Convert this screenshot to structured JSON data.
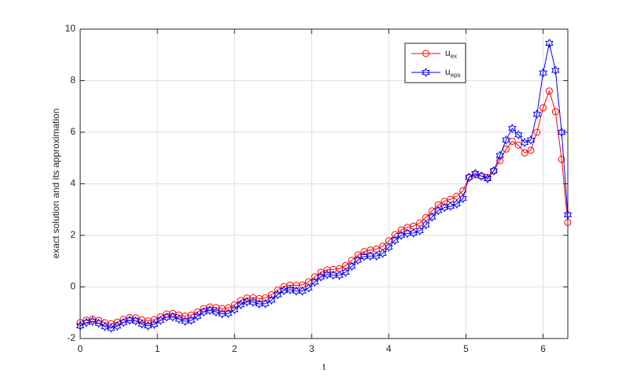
{
  "chart_data": {
    "type": "line",
    "xlabel": "t",
    "ylabel": "exact solution and its approximation",
    "x": [
      0,
      0.08,
      0.16,
      0.24,
      0.32,
      0.4,
      0.48,
      0.56,
      0.64,
      0.72,
      0.8,
      0.88,
      0.96,
      1.04,
      1.12,
      1.2,
      1.28,
      1.36,
      1.44,
      1.52,
      1.6,
      1.68,
      1.76,
      1.84,
      1.92,
      2,
      2.08,
      2.16,
      2.24,
      2.32,
      2.4,
      2.48,
      2.56,
      2.64,
      2.72,
      2.8,
      2.88,
      2.96,
      3.04,
      3.12,
      3.2,
      3.28,
      3.36,
      3.44,
      3.52,
      3.6,
      3.68,
      3.76,
      3.84,
      3.92,
      4,
      4.08,
      4.16,
      4.24,
      4.32,
      4.4,
      4.48,
      4.56,
      4.64,
      4.72,
      4.8,
      4.88,
      4.96,
      5.04,
      5.12,
      5.2,
      5.28,
      5.36,
      5.44,
      5.52,
      5.6,
      5.68,
      5.76,
      5.84,
      5.92,
      6,
      6.08,
      6.16,
      6.24,
      6.32
    ],
    "series": [
      {
        "name": "u_ex",
        "color": "#ff0000",
        "marker": "circle",
        "values": [
          -1.38,
          -1.29,
          -1.25,
          -1.3,
          -1.39,
          -1.43,
          -1.37,
          -1.26,
          -1.19,
          -1.2,
          -1.28,
          -1.32,
          -1.27,
          -1.16,
          -1.05,
          -1.03,
          -1.09,
          -1.13,
          -1.09,
          -0.97,
          -0.84,
          -0.78,
          -0.8,
          -0.84,
          -0.81,
          -0.69,
          -0.53,
          -0.43,
          -0.42,
          -0.45,
          -0.42,
          -0.3,
          -0.12,
          0.02,
          0.07,
          0.06,
          0.08,
          0.2,
          0.39,
          0.57,
          0.66,
          0.68,
          0.71,
          0.83,
          1.03,
          1.24,
          1.37,
          1.43,
          1.47,
          1.58,
          1.79,
          2.03,
          2.21,
          2.31,
          2.36,
          2.48,
          2.69,
          2.95,
          3.18,
          3.32,
          3.4,
          3.52,
          3.73,
          4.25,
          4.35,
          4.3,
          4.25,
          4.5,
          4.9,
          5.35,
          5.65,
          5.5,
          5.2,
          5.3,
          6.0,
          6.95,
          7.6,
          6.8,
          4.95,
          2.5
        ]
      },
      {
        "name": "u_eps",
        "color": "#0000ff",
        "marker": "hexagram",
        "values": [
          -1.51,
          -1.38,
          -1.33,
          -1.41,
          -1.54,
          -1.6,
          -1.52,
          -1.38,
          -1.29,
          -1.32,
          -1.44,
          -1.51,
          -1.45,
          -1.3,
          -1.17,
          -1.16,
          -1.25,
          -1.33,
          -1.29,
          -1.14,
          -0.97,
          -0.91,
          -0.97,
          -1.04,
          -1.03,
          -0.88,
          -0.69,
          -0.58,
          -0.59,
          -0.66,
          -0.65,
          -0.51,
          -0.3,
          -0.14,
          -0.11,
          -0.16,
          -0.16,
          -0.04,
          0.19,
          0.39,
          0.48,
          0.46,
          0.45,
          0.57,
          0.8,
          1.04,
          1.18,
          1.2,
          1.2,
          1.3,
          1.54,
          1.81,
          2.0,
          2.08,
          2.09,
          2.18,
          2.41,
          2.71,
          2.96,
          3.08,
          3.13,
          3.22,
          3.43,
          4.25,
          4.4,
          4.3,
          4.2,
          4.5,
          5.1,
          5.7,
          6.15,
          5.9,
          5.6,
          5.7,
          6.7,
          8.3,
          9.45,
          8.4,
          6.0,
          2.8
        ]
      }
    ],
    "xlim": [
      0,
      6.32
    ],
    "xticks": [
      0,
      1,
      2,
      3,
      4,
      5,
      6
    ],
    "ylim": [
      -2,
      10
    ],
    "yticks": [
      -2,
      0,
      2,
      4,
      6,
      8,
      10
    ],
    "grid": true,
    "legend": "northeast"
  }
}
